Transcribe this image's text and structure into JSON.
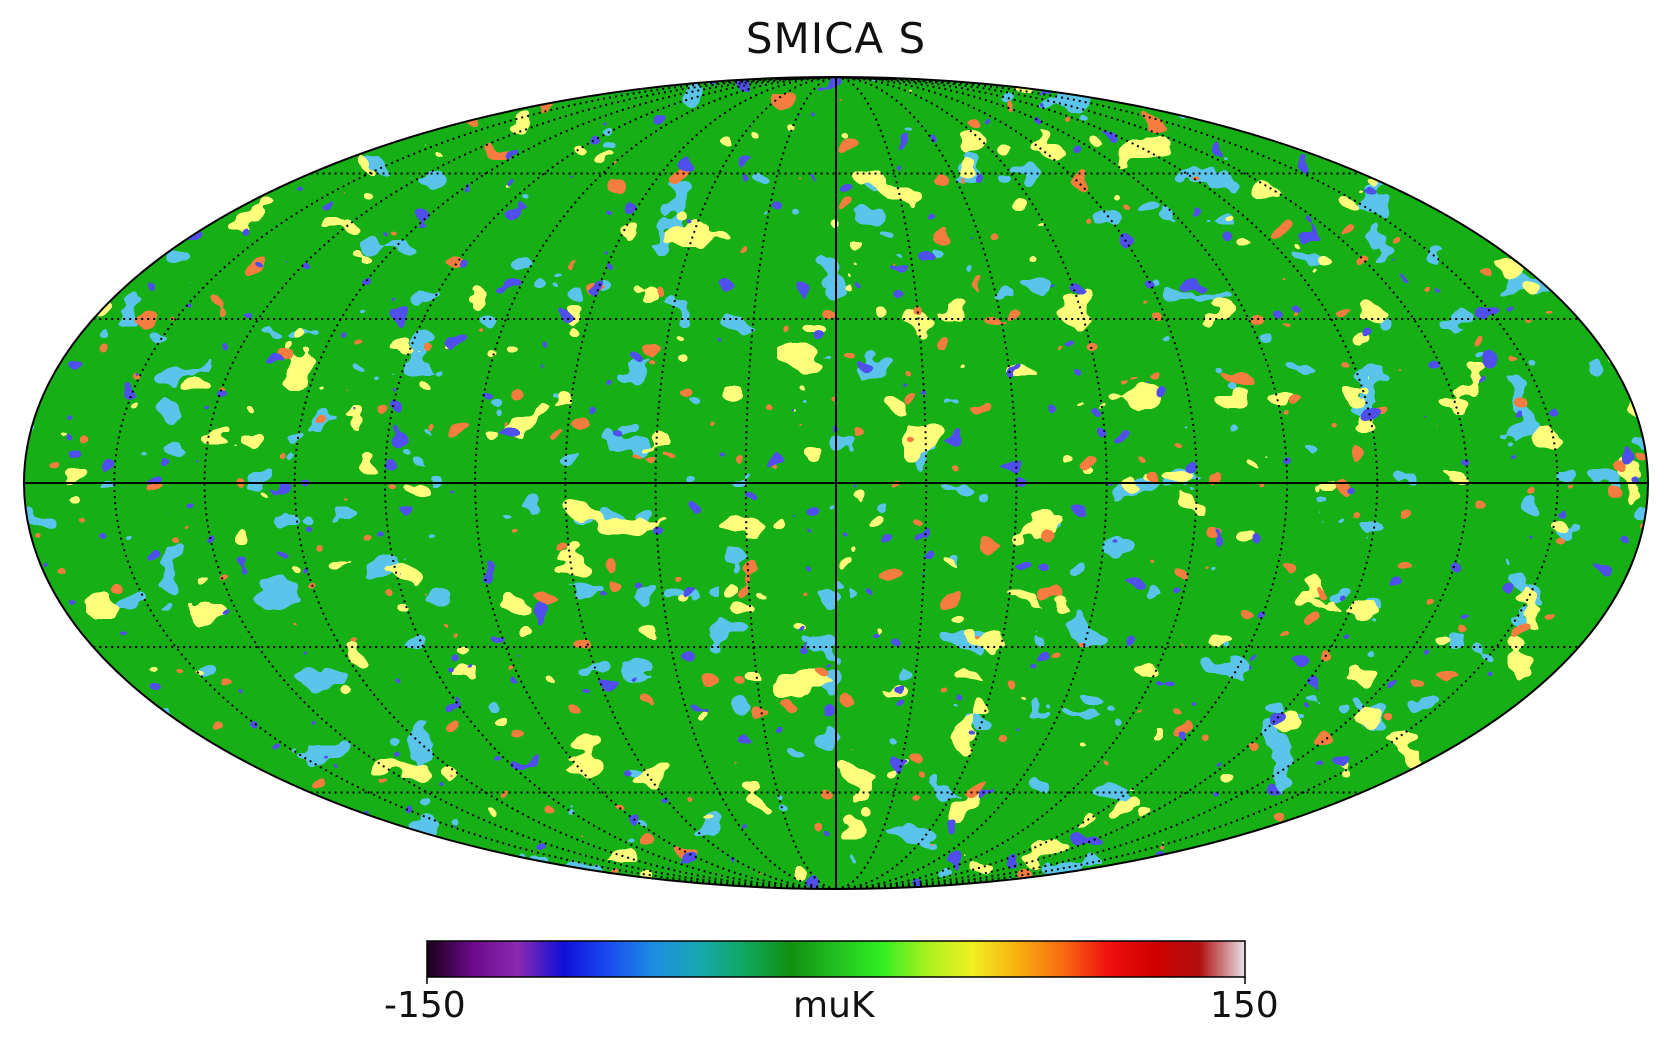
{
  "title": "SMICA S",
  "colorbar": {
    "min_label": "-150",
    "max_label": "150",
    "unit": "muK",
    "range": [
      -150,
      150
    ],
    "stops": [
      "#1a001a",
      "#6a0a8a",
      "#8a2ab0",
      "#1010d8",
      "#1a4cf0",
      "#1e8ee0",
      "#18a8b0",
      "#10a860",
      "#109010",
      "#22c020",
      "#30ee20",
      "#a8f020",
      "#f0f020",
      "#f8b010",
      "#f86a10",
      "#f01010",
      "#d00000",
      "#b01010",
      "#e8e0e8"
    ]
  },
  "projection": "mollweide",
  "graticule": {
    "meridian_step_deg": 20,
    "parallel_step_deg": 30
  },
  "map_colors": {
    "blue": "#1e8ecf",
    "green": "#14b414",
    "yellow": "#eef23a",
    "red": "#e83a12"
  }
}
